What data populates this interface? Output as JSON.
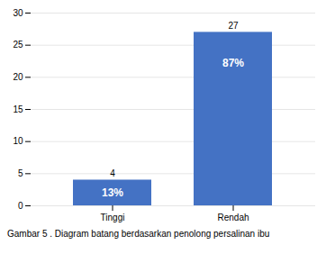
{
  "chart_data": {
    "type": "bar",
    "categories": [
      "Tinggi",
      "Rendah"
    ],
    "values": [
      4,
      27
    ],
    "percentage_labels": [
      "13%",
      "87%"
    ],
    "color": "#4472C4",
    "ylim": [
      0,
      30
    ],
    "yticks": [
      0,
      5,
      10,
      15,
      20,
      25,
      30
    ],
    "grid": true,
    "data_labels": true,
    "caption": "Gambar 5 . Diagram batang berdasarkan penolong persalinan ibu"
  }
}
